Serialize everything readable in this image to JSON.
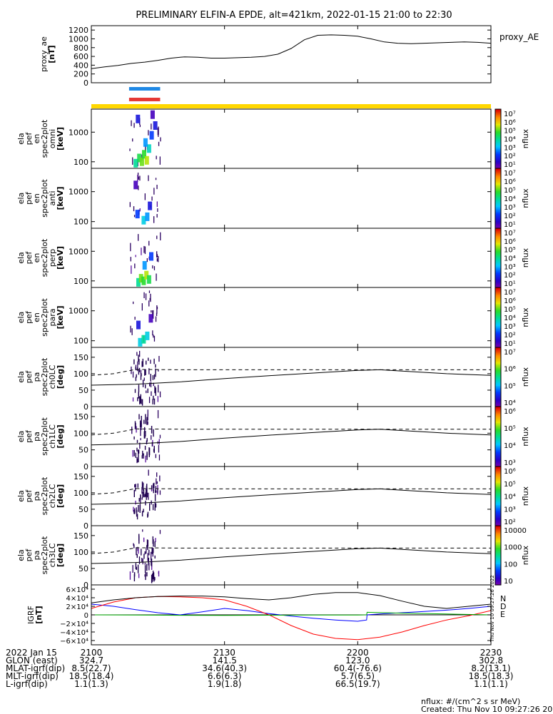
{
  "title": "PRELIMINARY ELFIN-A EPDE, alt=421km, 2022-01-15 21:00 to 22:30",
  "footer_note": {
    "units": "nflux: #/(cm^2 s sr MeV)",
    "created": "Created: Thu Nov 10 09:27:26 2022"
  },
  "side_stamp": "Thu Nov 10 09:27:26 2022",
  "colors": {
    "science_zone_blue": "#1e88e5",
    "science_zone_red": "#e53935",
    "sunlight_bar": "#ffd700",
    "grf_N": "#0000ff",
    "grf_D": "#ff0000",
    "grf_E": "#00aa00"
  },
  "time_axis": {
    "range_minutes": [
      0,
      90
    ],
    "ticks": [
      {
        "t": 0,
        "label": "2100"
      },
      {
        "t": 30,
        "label": "2130"
      },
      {
        "t": 60,
        "label": "2200"
      },
      {
        "t": 90,
        "label": "2230"
      }
    ]
  },
  "footer_rows": [
    {
      "label": "2022 Jan 15",
      "values": [
        "2100",
        "2130",
        "2200",
        "2230"
      ]
    },
    {
      "label": "GLON (east)",
      "values": [
        "324.7",
        "141.5",
        "123.0",
        "302.8"
      ]
    },
    {
      "label": "MLAT-igrf(dip)",
      "values": [
        "8.5(22.7)",
        "34.6(40.3)",
        "60.4(-76.6)",
        "8.2(13.1)"
      ]
    },
    {
      "label": "MLT-igrf(dip)",
      "values": [
        "18.5(18.4)",
        "6.6(6.3)",
        "5.7(6.5)",
        "18.5(18.3)"
      ]
    },
    {
      "label": "L-igrf(dip)",
      "values": [
        "1.1(1.3)",
        "1.9(1.8)",
        "66.5(19.7)",
        "1.1(1.1)"
      ]
    }
  ],
  "chart_data": [
    {
      "type": "line",
      "id": "proxy_ae",
      "ylabel_lines": [
        "proxy_ae",
        "[nT]"
      ],
      "legend": "proxy_AE",
      "ylim": [
        0,
        1300
      ],
      "yticks": [
        0,
        200,
        400,
        600,
        800,
        1000,
        1200
      ],
      "x": [
        0,
        3,
        6,
        9,
        12,
        15,
        18,
        21,
        24,
        27,
        30,
        33,
        36,
        39,
        42,
        45,
        48,
        51,
        54,
        57,
        60,
        63,
        66,
        69,
        72,
        75,
        78,
        81,
        84,
        87,
        90
      ],
      "y": [
        320,
        360,
        395,
        440,
        470,
        510,
        560,
        590,
        580,
        560,
        560,
        570,
        580,
        600,
        650,
        780,
        980,
        1080,
        1090,
        1080,
        1060,
        1000,
        930,
        900,
        890,
        900,
        910,
        920,
        930,
        920,
        900
      ]
    },
    {
      "type": "heatmap",
      "id": "en_omni",
      "ylabel_lines": [
        "ela",
        "pef",
        "en",
        "spec2plot",
        "omni",
        "[keV]"
      ],
      "yscale": "log",
      "ylim": [
        60,
        6000
      ],
      "yticks": [
        100,
        1000
      ],
      "active_x_range": [
        8.5,
        15.5
      ],
      "zlabel": "nflux",
      "zscale": "log",
      "zlim": [
        10,
        10000000
      ],
      "zticks": [
        "10⁷",
        "10⁶",
        "10⁵",
        "10⁴",
        "10³",
        "10²",
        "10¹"
      ],
      "cells": [
        {
          "t": 10.0,
          "e": 80,
          "z": 10000
        },
        {
          "t": 10.8,
          "e": 120,
          "z": 30000
        },
        {
          "t": 11.4,
          "e": 90,
          "z": 100000
        },
        {
          "t": 11.9,
          "e": 160,
          "z": 50000
        },
        {
          "t": 12.5,
          "e": 100,
          "z": 200000
        },
        {
          "t": 13.0,
          "e": 250,
          "z": 5000
        },
        {
          "t": 12.2,
          "e": 400,
          "z": 1000
        },
        {
          "t": 13.6,
          "e": 700,
          "z": 300
        },
        {
          "t": 14.4,
          "e": 1500,
          "z": 100
        },
        {
          "t": 10.5,
          "e": 2500,
          "z": 100
        },
        {
          "t": 13.8,
          "e": 3500,
          "z": 30
        }
      ]
    },
    {
      "type": "heatmap",
      "id": "en_anti",
      "ylabel_lines": [
        "ela",
        "pef",
        "en",
        "spec2plot",
        "anti",
        "[keV]"
      ],
      "yscale": "log",
      "ylim": [
        60,
        6000
      ],
      "yticks": [
        100,
        1000
      ],
      "active_x_range": [
        8.5,
        15.5
      ],
      "zlabel": "nflux",
      "zscale": "log",
      "zlim": [
        10,
        10000000
      ],
      "zticks": [
        "10⁷",
        "10⁶",
        "10⁵",
        "10⁴",
        "10³",
        "10²",
        "10¹"
      ],
      "cells": [
        {
          "t": 11.8,
          "e": 100,
          "z": 3000
        },
        {
          "t": 12.6,
          "e": 130,
          "z": 1000
        },
        {
          "t": 10.4,
          "e": 160,
          "z": 300
        },
        {
          "t": 13.2,
          "e": 300,
          "z": 100
        },
        {
          "t": 10.0,
          "e": 1500,
          "z": 30
        }
      ]
    },
    {
      "type": "heatmap",
      "id": "en_perp",
      "ylabel_lines": [
        "ela",
        "pef",
        "en",
        "spec2plot",
        "perp",
        "[keV]"
      ],
      "yscale": "log",
      "ylim": [
        60,
        6000
      ],
      "yticks": [
        100,
        1000
      ],
      "active_x_range": [
        8.5,
        15.5
      ],
      "zlabel": "nflux",
      "zscale": "log",
      "zlim": [
        10,
        10000000
      ],
      "zticks": [
        "10⁷",
        "10⁶",
        "10⁵",
        "10⁴",
        "10³",
        "10²",
        "10¹"
      ],
      "cells": [
        {
          "t": 10.6,
          "e": 80,
          "z": 10000
        },
        {
          "t": 11.2,
          "e": 110,
          "z": 100000
        },
        {
          "t": 11.8,
          "e": 90,
          "z": 50000
        },
        {
          "t": 12.4,
          "e": 140,
          "z": 200000
        },
        {
          "t": 13.0,
          "e": 100,
          "z": 30000
        },
        {
          "t": 12.0,
          "e": 300,
          "z": 1000
        },
        {
          "t": 13.5,
          "e": 600,
          "z": 300
        }
      ]
    },
    {
      "type": "heatmap",
      "id": "en_para",
      "ylabel_lines": [
        "ela",
        "pef",
        "en",
        "spec2plot",
        "para",
        "[keV]"
      ],
      "yscale": "log",
      "ylim": [
        60,
        6000
      ],
      "yticks": [
        100,
        1000
      ],
      "active_x_range": [
        8.5,
        15.5
      ],
      "zlabel": "nflux",
      "zscale": "log",
      "zlim": [
        10,
        10000000
      ],
      "zticks": [
        "10⁷",
        "10⁶",
        "10⁵",
        "10⁴",
        "10³",
        "10²",
        "10¹"
      ],
      "cells": [
        {
          "t": 11.0,
          "e": 80,
          "z": 3000
        },
        {
          "t": 11.8,
          "e": 100,
          "z": 10000
        },
        {
          "t": 12.6,
          "e": 130,
          "z": 3000
        },
        {
          "t": 10.6,
          "e": 300,
          "z": 100
        },
        {
          "t": 13.4,
          "e": 500,
          "z": 30
        }
      ]
    },
    {
      "type": "heatmap",
      "id": "pa_ch0",
      "ylabel_lines": [
        "ela",
        "pef",
        "pa",
        "spec2plot",
        "ch0LC",
        "[deg]"
      ],
      "ylim": [
        0,
        180
      ],
      "yticks": [
        0,
        50,
        100,
        150
      ],
      "active_x_range": [
        8.5,
        15.5
      ],
      "zlabel": "nflux",
      "zscale": "log",
      "zticks": [
        "10⁷",
        "10⁶",
        "10⁵",
        "10⁴"
      ],
      "lc_solid": [
        [
          0,
          65
        ],
        [
          10,
          68
        ],
        [
          20,
          75
        ],
        [
          30,
          85
        ],
        [
          40,
          94
        ],
        [
          50,
          102
        ],
        [
          60,
          110
        ],
        [
          65,
          112
        ],
        [
          70,
          108
        ],
        [
          80,
          100
        ],
        [
          90,
          95
        ]
      ],
      "lc_dashed": [
        [
          0,
          95
        ],
        [
          5,
          100
        ],
        [
          10,
          113
        ],
        [
          20,
          112
        ],
        [
          40,
          112
        ],
        [
          60,
          112
        ],
        [
          70,
          112
        ],
        [
          90,
          112
        ]
      ]
    },
    {
      "type": "heatmap",
      "id": "pa_ch1",
      "ylabel_lines": [
        "ela",
        "pef",
        "pa",
        "spec2plot",
        "ch1LC",
        "[deg]"
      ],
      "ylim": [
        0,
        180
      ],
      "yticks": [
        0,
        50,
        100,
        150
      ],
      "active_x_range": [
        8.5,
        15.5
      ],
      "zlabel": "nflux",
      "zscale": "log",
      "zticks": [
        "10⁶",
        "10⁵",
        "10⁴",
        "10³"
      ],
      "lc_solid": [
        [
          0,
          65
        ],
        [
          10,
          68
        ],
        [
          20,
          75
        ],
        [
          30,
          85
        ],
        [
          40,
          94
        ],
        [
          50,
          102
        ],
        [
          60,
          110
        ],
        [
          65,
          112
        ],
        [
          70,
          108
        ],
        [
          80,
          100
        ],
        [
          90,
          95
        ]
      ],
      "lc_dashed": [
        [
          0,
          95
        ],
        [
          5,
          100
        ],
        [
          10,
          113
        ],
        [
          20,
          112
        ],
        [
          40,
          112
        ],
        [
          60,
          112
        ],
        [
          70,
          112
        ],
        [
          90,
          112
        ]
      ]
    },
    {
      "type": "heatmap",
      "id": "pa_ch2",
      "ylabel_lines": [
        "ela",
        "pef",
        "pa",
        "spec2plot",
        "ch2LC",
        "[deg]"
      ],
      "ylim": [
        0,
        180
      ],
      "yticks": [
        0,
        50,
        100,
        150
      ],
      "active_x_range": [
        8.5,
        15.5
      ],
      "zlabel": "nflux",
      "zscale": "log",
      "zticks": [
        "10⁶",
        "10⁵",
        "10⁴",
        "10³",
        "10²"
      ],
      "lc_solid": [
        [
          0,
          65
        ],
        [
          10,
          68
        ],
        [
          20,
          75
        ],
        [
          30,
          85
        ],
        [
          40,
          94
        ],
        [
          50,
          102
        ],
        [
          60,
          110
        ],
        [
          65,
          112
        ],
        [
          70,
          108
        ],
        [
          80,
          100
        ],
        [
          90,
          95
        ]
      ],
      "lc_dashed": [
        [
          0,
          95
        ],
        [
          5,
          100
        ],
        [
          10,
          113
        ],
        [
          20,
          112
        ],
        [
          40,
          112
        ],
        [
          60,
          112
        ],
        [
          70,
          112
        ],
        [
          90,
          112
        ]
      ]
    },
    {
      "type": "heatmap",
      "id": "pa_ch3",
      "ylabel_lines": [
        "ela",
        "pef",
        "pa",
        "spec2plot",
        "ch3LC",
        "[deg]"
      ],
      "ylim": [
        0,
        180
      ],
      "yticks": [
        0,
        50,
        100,
        150
      ],
      "active_x_range": [
        8.5,
        15.5
      ],
      "zlabel": "nflux",
      "zscale": "log",
      "zticks": [
        "10000",
        "1000",
        "100",
        "10"
      ],
      "lc_solid": [
        [
          0,
          65
        ],
        [
          10,
          68
        ],
        [
          20,
          75
        ],
        [
          30,
          85
        ],
        [
          40,
          94
        ],
        [
          50,
          102
        ],
        [
          60,
          110
        ],
        [
          65,
          112
        ],
        [
          70,
          108
        ],
        [
          80,
          100
        ],
        [
          90,
          95
        ]
      ],
      "lc_dashed": [
        [
          0,
          95
        ],
        [
          5,
          100
        ],
        [
          10,
          113
        ],
        [
          20,
          112
        ],
        [
          40,
          112
        ],
        [
          60,
          112
        ],
        [
          70,
          112
        ],
        [
          90,
          112
        ]
      ]
    },
    {
      "type": "line",
      "id": "grf",
      "ylabel_lines": [
        "IGRF",
        "[nT]"
      ],
      "ylim": [
        -70000,
        70000
      ],
      "yticks": [
        -60000,
        -40000,
        -20000,
        0,
        20000,
        40000,
        60000
      ],
      "ytick_labels": [
        "−6×10⁴",
        "−4×10⁴",
        "−2×10⁴",
        "0",
        "2×10⁴",
        "4×10⁴",
        "6×10⁴"
      ],
      "zero_line": true,
      "series": [
        {
          "name": "N",
          "color": "#0000ff",
          "x": [
            0,
            5,
            10,
            15,
            20,
            25,
            30,
            35,
            40,
            45,
            50,
            55,
            60,
            62,
            62.1,
            65,
            70,
            75,
            80,
            85,
            90
          ],
          "y": [
            25000,
            20000,
            12000,
            5000,
            0,
            7000,
            15000,
            10000,
            3000,
            -3000,
            -8000,
            -12000,
            -15000,
            -12000,
            0,
            2000,
            5000,
            8000,
            11000,
            15000,
            20000
          ]
        },
        {
          "name": "D",
          "color": "#ff0000",
          "x": [
            0,
            5,
            10,
            15,
            20,
            25,
            30,
            35,
            40,
            45,
            50,
            55,
            60,
            65,
            70,
            75,
            80,
            85,
            90
          ],
          "y": [
            15000,
            30000,
            40000,
            43000,
            42000,
            40000,
            35000,
            20000,
            0,
            -25000,
            -45000,
            -55000,
            -58000,
            -52000,
            -40000,
            -25000,
            -12000,
            -2000,
            10000
          ]
        },
        {
          "name": "E",
          "color": "#00aa00",
          "x": [
            0,
            10,
            20,
            30,
            40,
            50,
            60,
            62,
            62.1,
            70,
            80,
            90
          ],
          "y": [
            0,
            -500,
            -1000,
            -1200,
            -800,
            -500,
            -300,
            0,
            6000,
            4000,
            2000,
            0
          ]
        },
        {
          "name": "",
          "color": "#000000",
          "x": [
            0,
            5,
            10,
            15,
            20,
            25,
            30,
            35,
            40,
            45,
            50,
            55,
            60,
            65,
            70,
            75,
            80,
            85,
            90
          ],
          "y": [
            28000,
            35000,
            40000,
            43000,
            44000,
            44000,
            42000,
            38000,
            35000,
            40000,
            48000,
            52000,
            52000,
            45000,
            32000,
            20000,
            15000,
            20000,
            25000
          ]
        }
      ]
    }
  ]
}
